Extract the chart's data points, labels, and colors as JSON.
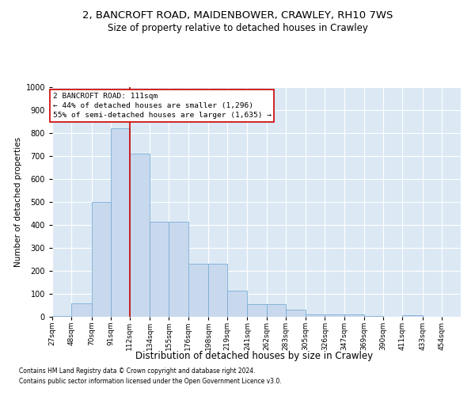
{
  "title1": "2, BANCROFT ROAD, MAIDENBOWER, CRAWLEY, RH10 7WS",
  "title2": "Size of property relative to detached houses in Crawley",
  "xlabel": "Distribution of detached houses by size in Crawley",
  "ylabel": "Number of detached properties",
  "footnote1": "Contains HM Land Registry data © Crown copyright and database right 2024.",
  "footnote2": "Contains public sector information licensed under the Open Government Licence v3.0.",
  "bin_edges": [
    27,
    48,
    70,
    91,
    112,
    134,
    155,
    176,
    198,
    219,
    241,
    262,
    283,
    305,
    326,
    347,
    369,
    390,
    411,
    433,
    454
  ],
  "counts": [
    5,
    60,
    500,
    820,
    710,
    415,
    415,
    230,
    230,
    115,
    55,
    55,
    30,
    12,
    12,
    9,
    5,
    0,
    8,
    0
  ],
  "bar_color": "#c8d9ee",
  "bar_edge_color": "#7badd4",
  "vline_x": 112,
  "vline_color": "#cc0000",
  "annotation_text": "2 BANCROFT ROAD: 111sqm\n← 44% of detached houses are smaller (1,296)\n55% of semi-detached houses are larger (1,635) →",
  "annotation_box_facecolor": "#ffffff",
  "annotation_box_edgecolor": "#cc0000",
  "ylim": [
    0,
    1000
  ],
  "yticks": [
    0,
    100,
    200,
    300,
    400,
    500,
    600,
    700,
    800,
    900,
    1000
  ],
  "plot_bg_color": "#dce9f5",
  "title1_fontsize": 9.5,
  "title2_fontsize": 8.5,
  "xlabel_fontsize": 8.5,
  "ylabel_fontsize": 7.5,
  "annot_fontsize": 6.8,
  "tick_fontsize": 6.5,
  "ytick_fontsize": 7.0,
  "footnote_fontsize": 5.5
}
